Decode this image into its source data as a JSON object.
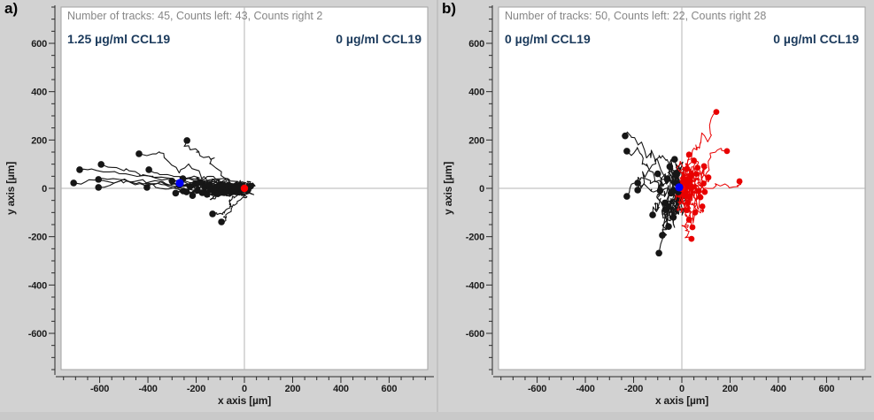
{
  "chart_data": [
    {
      "type": "line",
      "panel_label": "a)",
      "header": "Number of tracks: 45, Counts left: 43, Counts right 2",
      "counts": {
        "tracks": 45,
        "left": 43,
        "right": 2
      },
      "left_concentration_label": "1.25 µg/ml CCL19",
      "right_concentration_label": "0 µg/ml CCL19",
      "xlabel": "x axis [µm]",
      "ylabel": "y axis [µm]",
      "x_ticks": [
        -600,
        -400,
        -200,
        0,
        200,
        400,
        600
      ],
      "y_ticks": [
        600,
        400,
        200,
        0,
        -200,
        -400,
        -600
      ],
      "x_range": [
        -760,
        760
      ],
      "y_range": [
        -750,
        750
      ],
      "minor_tick_step_um": 50,
      "grid": "crosshair-at-origin",
      "start_marker": {
        "x": 0,
        "y": 0,
        "color": "#ff0000",
        "r": 4.2
      },
      "com_marker": {
        "x": -268,
        "y": 22,
        "color": "#0000f5",
        "r": 4.6
      },
      "track_groups": [
        {
          "name": "tracks-toward-left",
          "color": "#161616",
          "stroke_width": 1.1,
          "dot_r": 3.8,
          "amp": [
            45,
            38
          ],
          "endpoints": [
            [
              -708,
              22
            ],
            [
              -683,
              77
            ],
            [
              -605,
              37
            ],
            [
              -605,
              4
            ],
            [
              -594,
              99
            ],
            [
              -437,
              143
            ],
            [
              -404,
              4
            ],
            [
              -396,
              77
            ],
            [
              -253,
              -11
            ],
            [
              -238,
              198
            ],
            [
              -300,
              30
            ],
            [
              -285,
              -20
            ],
            [
              -270,
              12
            ],
            [
              -255,
              40
            ],
            [
              -240,
              -15
            ],
            [
              -225,
              8
            ],
            [
              -215,
              -30
            ],
            [
              -205,
              18
            ],
            [
              -195,
              -8
            ],
            [
              -185,
              25
            ],
            [
              -175,
              -18
            ],
            [
              -165,
              6
            ],
            [
              -155,
              -25
            ],
            [
              -148,
              12
            ],
            [
              -140,
              -5
            ],
            [
              -132,
              -106
            ],
            [
              -125,
              -14
            ],
            [
              -118,
              4
            ],
            [
              -110,
              -22
            ],
            [
              -103,
              10
            ],
            [
              -96,
              -8
            ],
            [
              -95,
              -139
            ],
            [
              -90,
              15
            ],
            [
              -84,
              -18
            ],
            [
              -78,
              5
            ],
            [
              -72,
              -10
            ],
            [
              -66,
              12
            ],
            [
              -60,
              -4
            ],
            [
              -54,
              8
            ],
            [
              -48,
              -14
            ],
            [
              -30,
              2
            ],
            [
              15,
              -6
            ],
            [
              26,
              9
            ]
          ]
        }
      ]
    },
    {
      "type": "line",
      "panel_label": "b)",
      "header": "Number of tracks: 50, Counts left: 22, Counts right 28",
      "counts": {
        "tracks": 50,
        "left": 22,
        "right": 28
      },
      "left_concentration_label": "0 µg/ml CCL19",
      "right_concentration_label": "0 µg/ml CCL19",
      "xlabel": "x axis [µm]",
      "ylabel": "y axis [µm]",
      "x_ticks": [
        -600,
        -400,
        -200,
        0,
        200,
        400,
        600
      ],
      "y_ticks": [
        600,
        400,
        200,
        0,
        -200,
        -400,
        -600
      ],
      "x_range": [
        -760,
        760
      ],
      "y_range": [
        -750,
        750
      ],
      "minor_tick_step_um": 50,
      "grid": "crosshair-at-origin",
      "start_marker": {
        "x": 0,
        "y": 0,
        "color": "#ff0000",
        "r": 4.0
      },
      "com_marker": {
        "x": -11,
        "y": 4,
        "color": "#0000f5",
        "r": 4.6
      },
      "track_groups": [
        {
          "name": "tracks-toward-left",
          "color": "#161616",
          "stroke_width": 1.1,
          "dot_r": 3.8,
          "amp": [
            45,
            85
          ],
          "endpoints": [
            [
              -235,
              217
            ],
            [
              -228,
              154
            ],
            [
              -228,
              -33
            ],
            [
              -183,
              22
            ],
            [
              -183,
              -7
            ],
            [
              -121,
              -110
            ],
            [
              -95,
              -268
            ],
            [
              -81,
              -194
            ],
            [
              -66,
              -88
            ],
            [
              -55,
              -158
            ],
            [
              -100,
              60
            ],
            [
              -90,
              -10
            ],
            [
              -70,
              -60
            ],
            [
              -60,
              40
            ],
            [
              -50,
              90
            ],
            [
              -45,
              -20
            ],
            [
              -35,
              -120
            ],
            [
              -30,
              120
            ],
            [
              -55,
              -75
            ],
            [
              -25,
              60
            ],
            [
              -20,
              20
            ],
            [
              -15,
              -15
            ]
          ]
        },
        {
          "name": "tracks-toward-right",
          "color": "#e80000",
          "stroke_width": 1.0,
          "dot_r": 3.4,
          "amp": [
            40,
            75
          ],
          "endpoints": [
            [
              143,
              316
            ],
            [
              187,
              154
            ],
            [
              239,
              29
            ],
            [
              92,
              92
            ],
            [
              77,
              -37
            ],
            [
              44,
              -161
            ],
            [
              40,
              -209
            ],
            [
              30,
              140
            ],
            [
              60,
              60
            ],
            [
              90,
              20
            ],
            [
              25,
              -60
            ],
            [
              55,
              -100
            ],
            [
              70,
              -10
            ],
            [
              35,
              30
            ],
            [
              20,
              80
            ],
            [
              15,
              -20
            ],
            [
              45,
              5
            ],
            [
              85,
              -75
            ],
            [
              110,
              45
            ],
            [
              30,
              -130
            ],
            [
              50,
              115
            ],
            [
              65,
              85
            ],
            [
              18,
              10
            ],
            [
              28,
              -35
            ],
            [
              95,
              -15
            ],
            [
              38,
              55
            ],
            [
              22,
              -90
            ],
            [
              12,
              35
            ]
          ]
        }
      ]
    }
  ]
}
